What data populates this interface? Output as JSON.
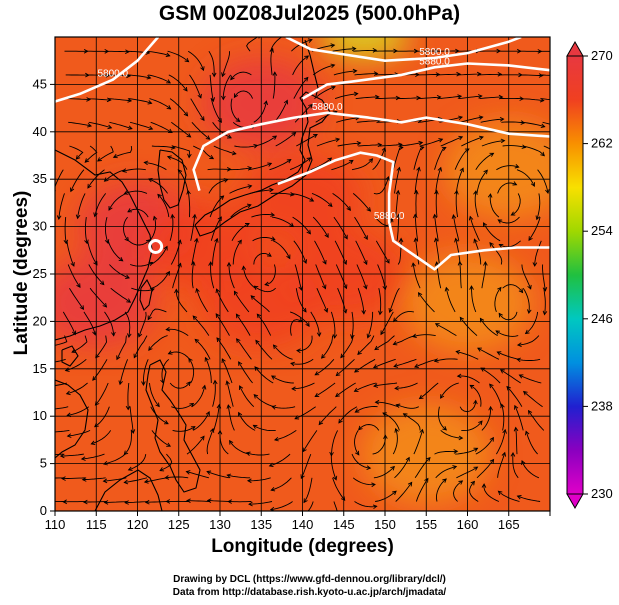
{
  "title": "GSM 00Z08Jul2025 (500.0hPa)",
  "x_axis_label": "Longitude (degrees)",
  "y_axis_label": "Latitude  (degrees)",
  "credit_line_1": "Drawing by DCL (https://www.gfd-dennou.org/library/dcl/)",
  "credit_line_2": "Data from http://database.rish.kyoto-u.ac.jp/arch/jmadata/",
  "chart_data": {
    "type": "heatmap",
    "title": "GSM 00Z08Jul2025 (500.0hPa)",
    "xlabel": "Longitude (degrees)",
    "ylabel": "Latitude  (degrees)",
    "xlim": [
      110,
      170
    ],
    "ylim": [
      0,
      50
    ],
    "x_ticks": [
      110,
      115,
      120,
      125,
      130,
      135,
      140,
      145,
      150,
      155,
      160,
      165
    ],
    "y_ticks": [
      0,
      5,
      10,
      15,
      20,
      25,
      30,
      35,
      40,
      45
    ],
    "colorbar": {
      "min": 230,
      "max": 270,
      "ticks": [
        230,
        238,
        246,
        254,
        262,
        270
      ],
      "colors": [
        "#e000c8",
        "#8a00c0",
        "#2020d0",
        "#0090e0",
        "#00c8c0",
        "#20c040",
        "#a0d800",
        "#f8e000",
        "#f89000",
        "#f04020",
        "#e83840"
      ]
    },
    "contours": [
      {
        "label": "5800.0",
        "points": [
          [
            110,
            43.2
          ],
          [
            113,
            44
          ],
          [
            117,
            45.5
          ],
          [
            120,
            47.5
          ],
          [
            122.5,
            50
          ]
        ]
      },
      {
        "label": "5800.0",
        "points": [
          [
            138,
            50
          ],
          [
            141,
            48.7
          ],
          [
            144,
            48.3
          ],
          [
            150,
            47.5
          ],
          [
            156,
            47.8
          ],
          [
            160,
            48.3
          ],
          [
            165,
            49.5
          ],
          [
            166.5,
            50
          ]
        ]
      },
      {
        "label": "5880.0",
        "points": [
          [
            140,
            43.5
          ],
          [
            143,
            45
          ],
          [
            146,
            45.3
          ],
          [
            152,
            46
          ],
          [
            156,
            46.8
          ],
          [
            160,
            47.2
          ],
          [
            165,
            47
          ],
          [
            170,
            46.5
          ]
        ]
      },
      {
        "label": "5880.0",
        "points": [
          [
            127.5,
            33.8
          ],
          [
            126.8,
            36
          ],
          [
            128,
            38.5
          ],
          [
            131,
            40
          ],
          [
            135,
            40.8
          ],
          [
            139,
            41.5
          ],
          [
            143,
            42
          ],
          [
            148,
            41.5
          ],
          [
            152,
            41
          ],
          [
            155,
            41.5
          ],
          [
            160,
            40.8
          ],
          [
            165,
            39.8
          ],
          [
            170,
            39.5
          ]
        ]
      },
      {
        "label": "5880.0",
        "points": [
          [
            137,
            34.5
          ],
          [
            141,
            35.8
          ],
          [
            144,
            37
          ],
          [
            147,
            37.8
          ],
          [
            149,
            37.5
          ],
          [
            151,
            36.8
          ],
          [
            150.5,
            33.5
          ],
          [
            150.5,
            30.5
          ],
          [
            151,
            28.5
          ],
          [
            153.5,
            27
          ],
          [
            156,
            25.5
          ],
          [
            158,
            27
          ],
          [
            162,
            27.5
          ],
          [
            166,
            27.8
          ],
          [
            170,
            27.8
          ]
        ]
      }
    ],
    "markers": [
      {
        "name": "typhoon-center",
        "lon": 122.2,
        "lat": 27.9
      }
    ],
    "warm_zones": [
      {
        "lon": 120,
        "lat": 30,
        "value": 268
      },
      {
        "lon": 115,
        "lat": 22,
        "value": 268
      },
      {
        "lon": 135,
        "lat": 43,
        "value": 268
      },
      {
        "lon": 128,
        "lat": 28,
        "value": 267
      },
      {
        "lon": 140,
        "lat": 33,
        "value": 267
      },
      {
        "lon": 135,
        "lat": 22,
        "value": 266
      },
      {
        "lon": 145,
        "lat": 25,
        "value": 266
      }
    ],
    "cool_zones": [
      {
        "lon": 147.5,
        "lat": 50,
        "value": 258
      },
      {
        "lon": 165,
        "lat": 36,
        "value": 263
      },
      {
        "lon": 160,
        "lat": 22,
        "value": 263
      },
      {
        "lon": 155,
        "lat": 6,
        "value": 263
      }
    ]
  }
}
